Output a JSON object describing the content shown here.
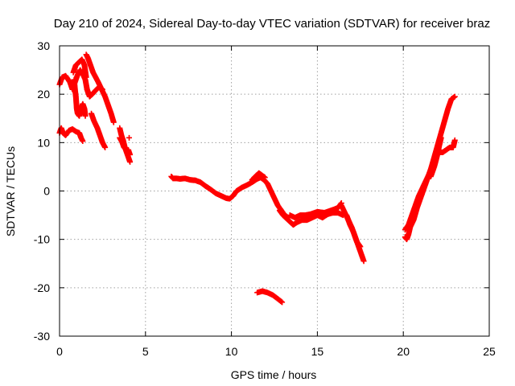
{
  "chart_data": {
    "type": "scatter",
    "title": "Day 210 of 2024, Sidereal Day-to-day VTEC variation (SDTVAR) for receiver braz",
    "xlabel": "GPS time / hours",
    "ylabel": "SDTVAR / TECUs",
    "xlim": [
      0,
      25
    ],
    "ylim": [
      -30,
      30
    ],
    "xticks": [
      0,
      5,
      10,
      15,
      20,
      25
    ],
    "yticks": [
      -30,
      -20,
      -10,
      0,
      10,
      20,
      30
    ],
    "grid": true,
    "marker": "+",
    "series": [
      {
        "name": "sdtvar",
        "color": "#ff0000",
        "segments": [
          {
            "name": "early-upper-a",
            "points": [
              [
                0.0,
                22.0
              ],
              [
                0.15,
                23.5
              ],
              [
                0.35,
                23.8
              ],
              [
                0.6,
                22.5
              ],
              [
                0.75,
                21.0
              ],
              [
                0.9,
                22.5
              ],
              [
                1.05,
                24.0
              ],
              [
                1.2,
                25.0
              ],
              [
                1.35,
                24.2
              ],
              [
                1.5,
                23.0
              ],
              [
                1.6,
                21.0
              ],
              [
                1.7,
                20.0
              ]
            ]
          },
          {
            "name": "early-upper-b",
            "points": [
              [
                0.8,
                24.5
              ],
              [
                0.95,
                26.0
              ],
              [
                1.1,
                26.5
              ],
              [
                1.3,
                27.2
              ],
              [
                1.45,
                26.0
              ],
              [
                1.55,
                23.5
              ]
            ]
          },
          {
            "name": "early-drop",
            "points": [
              [
                0.85,
                23.0
              ],
              [
                0.9,
                21.0
              ],
              [
                0.95,
                19.5
              ],
              [
                1.0,
                17.0
              ],
              [
                1.05,
                16.0
              ],
              [
                1.15,
                15.5
              ],
              [
                1.25,
                17.0
              ],
              [
                1.35,
                18.0
              ],
              [
                1.45,
                17.0
              ],
              [
                1.5,
                15.5
              ]
            ]
          },
          {
            "name": "early-lower",
            "points": [
              [
                0.0,
                12.0
              ],
              [
                0.1,
                13.0
              ],
              [
                0.2,
                12.0
              ],
              [
                0.35,
                11.5
              ],
              [
                0.55,
                12.5
              ],
              [
                0.75,
                12.8
              ],
              [
                0.95,
                12.3
              ],
              [
                1.15,
                12.0
              ],
              [
                1.25,
                11.0
              ],
              [
                1.35,
                10.3
              ]
            ]
          },
          {
            "name": "peak-descent",
            "points": [
              [
                1.55,
                28.2
              ],
              [
                1.65,
                27.5
              ],
              [
                1.8,
                26.0
              ],
              [
                1.95,
                24.5
              ],
              [
                2.1,
                23.5
              ],
              [
                2.25,
                22.5
              ],
              [
                2.45,
                21.0
              ],
              [
                2.65,
                19.5
              ],
              [
                2.8,
                18.0
              ],
              [
                2.9,
                17.0
              ],
              [
                3.0,
                16.0
              ],
              [
                3.15,
                14.2
              ]
            ]
          },
          {
            "name": "descent-middle",
            "points": [
              [
                1.6,
                21.0
              ],
              [
                1.75,
                19.5
              ],
              [
                1.9,
                20.0
              ],
              [
                2.1,
                20.8
              ],
              [
                2.3,
                21.5
              ],
              [
                2.5,
                21.0
              ]
            ]
          },
          {
            "name": "descent-lower",
            "points": [
              [
                1.85,
                16.0
              ],
              [
                2.0,
                14.5
              ],
              [
                2.2,
                13.0
              ],
              [
                2.35,
                11.5
              ],
              [
                2.5,
                10.0
              ],
              [
                2.65,
                9.0
              ]
            ]
          },
          {
            "name": "end-cluster",
            "points": [
              [
                3.5,
                13.0
              ],
              [
                3.6,
                11.5
              ],
              [
                3.7,
                10.5
              ],
              [
                3.8,
                9.0
              ],
              [
                3.9,
                8.0
              ],
              [
                4.0,
                7.0
              ],
              [
                4.1,
                6.0
              ]
            ]
          },
          {
            "name": "end-cluster-b",
            "points": [
              [
                3.5,
                11.0
              ],
              [
                3.65,
                10.0
              ],
              [
                3.75,
                9.0
              ],
              [
                3.9,
                8.5
              ],
              [
                4.0,
                8.5
              ],
              [
                4.1,
                7.5
              ]
            ]
          },
          {
            "name": "end-marker",
            "points": [
              [
                4.05,
                11.0
              ]
            ]
          },
          {
            "name": "mid-curve",
            "points": [
              [
                6.5,
                3.0
              ],
              [
                6.6,
                2.6
              ],
              [
                6.8,
                2.6
              ],
              [
                7.0,
                2.5
              ],
              [
                7.3,
                2.6
              ],
              [
                7.6,
                2.3
              ],
              [
                7.9,
                2.2
              ],
              [
                8.2,
                1.8
              ],
              [
                8.5,
                1.0
              ],
              [
                8.8,
                0.3
              ],
              [
                9.1,
                -0.5
              ],
              [
                9.4,
                -1.0
              ],
              [
                9.7,
                -1.5
              ],
              [
                9.9,
                -1.6
              ],
              [
                10.1,
                -1.0
              ],
              [
                10.3,
                0.0
              ],
              [
                10.6,
                0.7
              ],
              [
                10.9,
                1.2
              ],
              [
                11.2,
                1.8
              ],
              [
                11.5,
                2.5
              ],
              [
                11.7,
                2.8
              ],
              [
                11.9,
                2.3
              ],
              [
                12.1,
                1.5
              ],
              [
                12.3,
                0.0
              ],
              [
                12.5,
                -1.5
              ],
              [
                12.7,
                -3.0
              ],
              [
                12.9,
                -4.0
              ],
              [
                13.1,
                -5.0
              ],
              [
                13.3,
                -5.5
              ]
            ]
          },
          {
            "name": "mid-curve-upper",
            "points": [
              [
                11.2,
                2.3
              ],
              [
                11.45,
                3.2
              ],
              [
                11.6,
                3.7
              ],
              [
                11.75,
                3.3
              ],
              [
                11.95,
                2.8
              ]
            ]
          },
          {
            "name": "trough-band",
            "points": [
              [
                12.8,
                -4.0
              ],
              [
                13.0,
                -5.0
              ],
              [
                13.3,
                -6.0
              ],
              [
                13.6,
                -7.0
              ],
              [
                13.8,
                -6.5
              ],
              [
                14.1,
                -6.0
              ],
              [
                14.4,
                -6.0
              ],
              [
                14.7,
                -5.5
              ],
              [
                15.0,
                -5.0
              ],
              [
                15.3,
                -5.5
              ],
              [
                15.6,
                -4.8
              ],
              [
                15.9,
                -4.5
              ],
              [
                16.2,
                -4.5
              ],
              [
                16.5,
                -5.0
              ]
            ]
          },
          {
            "name": "trough-band-b",
            "points": [
              [
                13.4,
                -5.0
              ],
              [
                13.7,
                -5.5
              ],
              [
                14.0,
                -5.0
              ],
              [
                14.3,
                -5.0
              ],
              [
                14.6,
                -4.8
              ],
              [
                15.0,
                -4.3
              ],
              [
                15.4,
                -4.5
              ],
              [
                15.8,
                -4.0
              ],
              [
                16.2,
                -3.5
              ],
              [
                16.4,
                -2.5
              ]
            ]
          },
          {
            "name": "final-descent",
            "points": [
              [
                16.4,
                -3.0
              ],
              [
                16.6,
                -4.5
              ],
              [
                16.8,
                -6.0
              ],
              [
                17.0,
                -7.5
              ],
              [
                17.2,
                -9.5
              ],
              [
                17.4,
                -11.5
              ],
              [
                17.55,
                -13.0
              ],
              [
                17.7,
                -14.5
              ]
            ]
          },
          {
            "name": "final-descent-b",
            "points": [
              [
                16.7,
                -5.0
              ],
              [
                16.9,
                -7.0
              ],
              [
                17.1,
                -8.5
              ],
              [
                17.3,
                -10.5
              ],
              [
                17.5,
                -11.5
              ]
            ]
          },
          {
            "name": "isolated-arc",
            "points": [
              [
                11.5,
                -21.0
              ],
              [
                11.8,
                -20.7
              ],
              [
                12.1,
                -21.0
              ],
              [
                12.4,
                -21.5
              ],
              [
                12.7,
                -22.3
              ],
              [
                12.95,
                -23.0
              ]
            ]
          },
          {
            "name": "late-rise",
            "points": [
              [
                20.1,
                -9.5
              ],
              [
                20.2,
                -10.0
              ],
              [
                20.3,
                -9.0
              ],
              [
                20.4,
                -7.5
              ],
              [
                20.6,
                -6.0
              ],
              [
                20.8,
                -3.5
              ],
              [
                21.0,
                -1.5
              ],
              [
                21.2,
                0.5
              ],
              [
                21.4,
                2.5
              ],
              [
                21.6,
                4.5
              ],
              [
                21.8,
                7.0
              ],
              [
                22.0,
                9.5
              ],
              [
                22.2,
                12.0
              ],
              [
                22.4,
                14.5
              ],
              [
                22.6,
                17.0
              ],
              [
                22.8,
                19.0
              ],
              [
                23.0,
                19.5
              ]
            ]
          },
          {
            "name": "late-rise-b",
            "points": [
              [
                20.1,
                -8.0
              ],
              [
                20.3,
                -7.0
              ],
              [
                20.5,
                -5.0
              ],
              [
                20.7,
                -3.0
              ],
              [
                20.9,
                -1.0
              ],
              [
                21.1,
                0.5
              ],
              [
                21.3,
                2.0
              ],
              [
                21.5,
                3.5
              ],
              [
                21.7,
                5.5
              ],
              [
                21.9,
                7.5
              ],
              [
                22.1,
                8.0
              ],
              [
                22.3,
                8.0
              ],
              [
                22.5,
                8.5
              ],
              [
                22.7,
                9.0
              ],
              [
                22.9,
                9.0
              ],
              [
                23.0,
                10.5
              ]
            ]
          },
          {
            "name": "late-branch",
            "points": [
              [
                21.6,
                3.0
              ],
              [
                21.8,
                5.0
              ],
              [
                21.95,
                7.0
              ],
              [
                22.1,
                9.5
              ],
              [
                22.2,
                11.0
              ]
            ]
          }
        ]
      }
    ]
  }
}
